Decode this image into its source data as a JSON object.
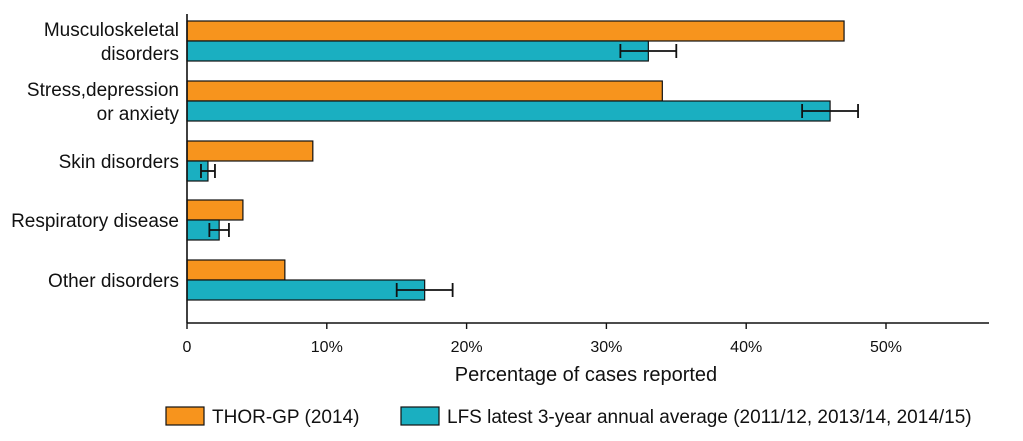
{
  "chart_data": {
    "type": "bar",
    "orientation": "horizontal",
    "categories": [
      [
        "Musculoskeletal",
        "disorders"
      ],
      [
        "Stress,depression",
        "or anxiety"
      ],
      [
        "Skin disorders"
      ],
      [
        "Respiratory disease"
      ],
      [
        "Other disorders"
      ]
    ],
    "series": [
      {
        "name": "THOR-GP (2014)",
        "color": "#f7941d",
        "values": [
          47,
          34,
          9,
          4,
          7
        ]
      },
      {
        "name": "LFS latest 3-year annual average (2011/12, 2013/14, 2014/15)",
        "color": "#1aafc1",
        "values": [
          33,
          46,
          1.5,
          2.3,
          17
        ],
        "error_low": [
          31,
          44,
          1,
          1.6,
          15
        ],
        "error_high": [
          35,
          48,
          2,
          3,
          19
        ]
      }
    ],
    "xticks": [
      0,
      10,
      20,
      30,
      40,
      50
    ],
    "xtick_labels": [
      "0",
      "10%",
      "20%",
      "30%",
      "40%",
      "50%"
    ],
    "xlim": [
      0,
      57
    ],
    "xlabel": "Percentage of cases reported",
    "ylabel": "",
    "title": "",
    "legend_position": "bottom"
  }
}
